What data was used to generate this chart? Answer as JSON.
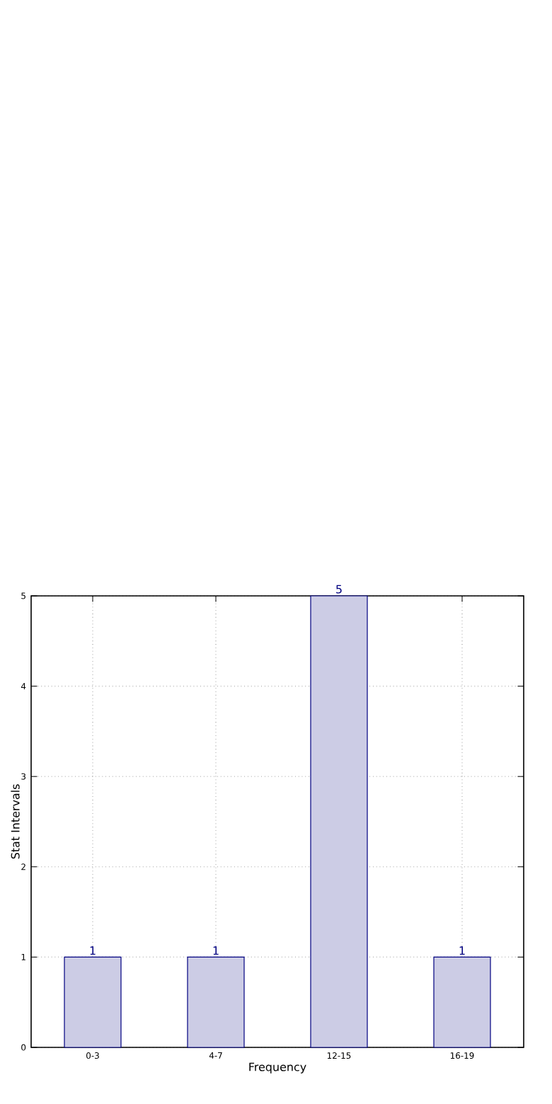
{
  "chart_data": {
    "type": "bar",
    "xlabel": "Frequency",
    "ylabel": "Stat Intervals",
    "categories": [
      "0-3",
      "4-7",
      "12-15",
      "16-19"
    ],
    "values": [
      1,
      1,
      5,
      1
    ],
    "color": "#ccccE5",
    "ylim": [
      0,
      5
    ],
    "yticks": [
      0,
      1,
      2,
      3,
      4,
      5
    ],
    "grid": true,
    "data_labels": true
  }
}
